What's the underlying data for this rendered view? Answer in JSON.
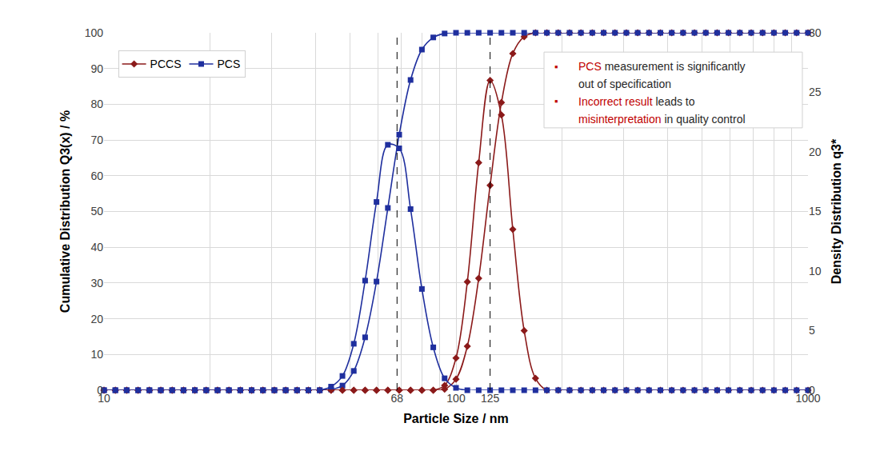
{
  "chart_data": {
    "type": "line",
    "x_label": "Particle Size / nm",
    "y_label": "Cumulative Distribution Q3(x) / %",
    "y2_label": "Density Distribution q3*",
    "log": "x",
    "grid": true,
    "legend": "upper left",
    "line_style": "smooth",
    "xlim": [
      10,
      1000
    ],
    "xticks": [
      10,
      68,
      100,
      125,
      1000
    ],
    "ylim": [
      0,
      100
    ],
    "yticks": [
      0,
      10,
      20,
      30,
      40,
      50,
      60,
      70,
      80,
      90,
      100
    ],
    "y2lim": [
      0,
      30
    ],
    "y2ticks": [
      0,
      5,
      10,
      15,
      20,
      25,
      30
    ],
    "x": [
      10,
      10.77,
      11.6,
      12.5,
      13.46,
      14.5,
      15.62,
      16.82,
      18.12,
      19.52,
      21.02,
      22.64,
      24.39,
      26.27,
      28.29,
      30.48,
      32.82,
      35.35,
      38.08,
      41.01,
      44.17,
      47.58,
      51.24,
      55.19,
      59.45,
      64.03,
      68.97,
      74.29,
      80.01,
      86.18,
      92.83,
      100,
      107.7,
      116,
      125,
      134.6,
      145,
      156.2,
      168.2,
      181.2,
      195.2,
      210.2,
      226.4,
      243.9,
      262.7,
      282.9,
      304.8,
      328.2,
      353.5,
      380.8,
      410.1,
      441.7,
      475.8,
      512.4,
      551.9,
      594.5,
      640.3,
      689.7,
      742.9,
      800.1,
      861.8,
      928.3,
      1000
    ],
    "series": [
      {
        "name": "PCCS",
        "color": "#8b1a1a",
        "marker": "diamond",
        "axis": "y",
        "values": [
          0,
          0,
          0,
          0,
          0,
          0,
          0,
          0,
          0,
          0,
          0,
          0,
          0,
          0,
          0,
          0,
          0,
          0,
          0,
          0,
          0,
          0,
          0,
          0,
          0,
          0,
          0,
          0,
          0,
          0,
          0.3,
          3.1,
          12.3,
          31.3,
          57.3,
          80.5,
          94.2,
          98.9,
          100,
          100,
          100,
          100,
          100,
          100,
          100,
          100,
          100,
          100,
          100,
          100,
          100,
          100,
          100,
          100,
          100,
          100,
          100,
          100,
          100,
          100,
          100,
          100,
          100
        ]
      },
      {
        "name": "PCCS",
        "color": "#8b1a1a",
        "marker": "diamond",
        "axis": "y2",
        "values": [
          0,
          0,
          0,
          0,
          0,
          0,
          0,
          0,
          0,
          0,
          0,
          0,
          0,
          0,
          0,
          0,
          0,
          0,
          0,
          0,
          0,
          0,
          0,
          0,
          0,
          0,
          0,
          0,
          0,
          0,
          0.4,
          2.7,
          9.1,
          19.1,
          26.0,
          23.1,
          13.5,
          5.0,
          1.0,
          0,
          0,
          0,
          0,
          0,
          0,
          0,
          0,
          0,
          0,
          0,
          0,
          0,
          0,
          0,
          0,
          0,
          0,
          0,
          0,
          0,
          0,
          0,
          0
        ]
      },
      {
        "name": "PCS",
        "color": "#1f2f9e",
        "marker": "square",
        "axis": "y",
        "values": [
          0,
          0,
          0,
          0,
          0,
          0,
          0,
          0,
          0,
          0,
          0,
          0,
          0,
          0,
          0,
          0,
          0,
          0,
          0,
          0,
          0.2,
          1.3,
          5.4,
          14.8,
          30.4,
          51,
          71.5,
          86.8,
          95.3,
          98.7,
          99.8,
          100,
          100,
          100,
          100,
          100,
          100,
          100,
          100,
          100,
          100,
          100,
          100,
          100,
          100,
          100,
          100,
          100,
          100,
          100,
          100,
          100,
          100,
          100,
          100,
          100,
          100,
          100,
          100,
          100,
          100,
          100,
          100
        ]
      },
      {
        "name": "PCS",
        "color": "#1f2f9e",
        "marker": "square",
        "axis": "y2",
        "values": [
          0,
          0,
          0,
          0,
          0,
          0,
          0,
          0,
          0,
          0,
          0,
          0,
          0,
          0,
          0,
          0,
          0,
          0,
          0,
          0,
          0.3,
          1.2,
          3.9,
          9.2,
          15.8,
          20.6,
          20.3,
          15.2,
          8.5,
          3.6,
          1.0,
          0.2,
          0,
          0,
          0,
          0,
          0,
          0,
          0,
          0,
          0,
          0,
          0,
          0,
          0,
          0,
          0,
          0,
          0,
          0,
          0,
          0,
          0,
          0,
          0,
          0,
          0,
          0,
          0,
          0,
          0,
          0,
          0
        ]
      }
    ],
    "annotations": [
      {
        "bullet": "▪",
        "bullet_color": "#c00000",
        "lines": [
          [
            {
              "text": "PCS",
              "color": "#c00000"
            },
            {
              "text": " measurement is significantly",
              "color": "#262626"
            }
          ],
          [
            {
              "text": "out of specification",
              "color": "#262626"
            }
          ]
        ]
      },
      {
        "bullet": "▪",
        "bullet_color": "#c00000",
        "lines": [
          [
            {
              "text": "Incorrect result",
              "color": "#c00000"
            },
            {
              "text": " leads to",
              "color": "#262626"
            }
          ],
          [
            {
              "text": "misinterpretation",
              "color": "#c00000"
            },
            {
              "text": " in quality control",
              "color": "#262626"
            }
          ]
        ]
      }
    ]
  }
}
